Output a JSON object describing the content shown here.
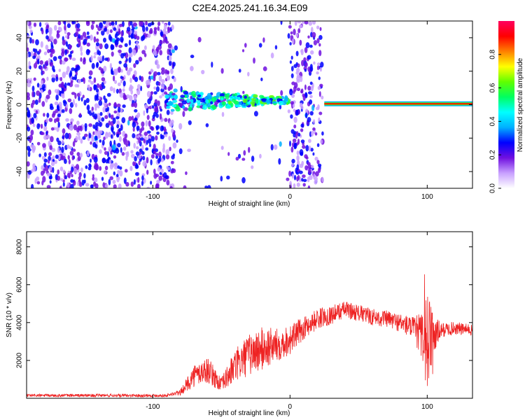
{
  "title": "C2E4.2025.241.16.34.E09",
  "chart_data": [
    {
      "type": "heatmap",
      "name": "spectrogram",
      "xlabel": "Height of straight line (km)",
      "ylabel": "Frequency (Hz)",
      "xlim": [
        -192,
        133
      ],
      "ylim": [
        -50,
        50
      ],
      "xticks": [
        -100,
        0,
        100
      ],
      "xtick_labels": [
        "-100",
        "0",
        "100"
      ],
      "yticks": [
        -40,
        -20,
        0,
        20,
        40
      ],
      "ytick_labels": [
        "-40",
        "-20",
        "0",
        "20",
        "40"
      ],
      "colorbar": {
        "label": "Normalized spectral amplitude",
        "range": [
          0,
          1
        ],
        "ticks": [
          0.0,
          0.2,
          0.4,
          0.6,
          0.8
        ],
        "tick_labels": [
          "0.0",
          "0.2",
          "0.4",
          "0.6",
          "0.8"
        ],
        "colors": [
          "#ffffff",
          "#c8a0ff",
          "#7010e0",
          "#0000ff",
          "#00b0ff",
          "#00ffff",
          "#00ff60",
          "#60ff00",
          "#ffff00",
          "#ff8000",
          "#ff0000",
          "#ff0060"
        ]
      },
      "regions": [
        {
          "kind": "noise",
          "x": [
            -192,
            -84
          ],
          "density": 0.95
        },
        {
          "kind": "noise",
          "x": [
            -1,
            24
          ],
          "density": 0.8
        },
        {
          "kind": "sparse",
          "x": [
            -84,
            -1
          ],
          "density": 0.06
        },
        {
          "kind": "signal",
          "x": [
            -90,
            -1
          ],
          "freq": 2.5,
          "amp": 0.45
        },
        {
          "kind": "tone",
          "x": [
            25,
            133
          ],
          "freq": 0.5,
          "amp": 0.95
        }
      ]
    },
    {
      "type": "line",
      "name": "snr",
      "xlabel": "Height of straight line (km)",
      "ylabel": "SNR (10 * v/v)",
      "xlim": [
        -192,
        133
      ],
      "ylim": [
        0,
        8800
      ],
      "xticks": [
        -100,
        0,
        100
      ],
      "xtick_labels": [
        "-100",
        "0",
        "100"
      ],
      "yticks": [
        2000,
        4000,
        6000,
        8000
      ],
      "ytick_labels": [
        "2000",
        "4000",
        "6000",
        "8000"
      ],
      "color": "#ee2222",
      "envelope": {
        "x": [
          -192,
          -90,
          -80,
          -70,
          -60,
          -50,
          -40,
          -30,
          -20,
          -10,
          0,
          10,
          20,
          30,
          40,
          50,
          60,
          70,
          80,
          90,
          100,
          110,
          120,
          133
        ],
        "y": [
          150,
          150,
          300,
          1200,
          1500,
          700,
          1700,
          2300,
          2600,
          2800,
          3100,
          3700,
          4200,
          4400,
          4700,
          4500,
          4300,
          4200,
          4000,
          3700,
          3000,
          3600,
          3700,
          3600
        ],
        "noise": [
          80,
          80,
          150,
          600,
          700,
          400,
          900,
          1100,
          1200,
          900,
          800,
          600,
          550,
          500,
          450,
          450,
          450,
          450,
          500,
          600,
          1800,
          400,
          350,
          300
        ]
      }
    }
  ]
}
